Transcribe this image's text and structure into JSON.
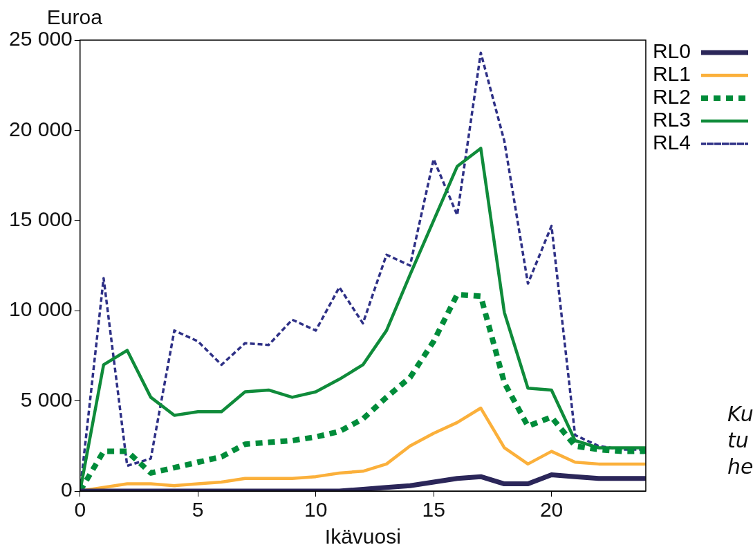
{
  "chart_data": {
    "type": "line",
    "xlabel": "Ikävuosi",
    "ylabel": "Euroa",
    "x": [
      0,
      1,
      2,
      3,
      4,
      5,
      6,
      7,
      8,
      9,
      10,
      11,
      12,
      13,
      14,
      15,
      16,
      17,
      18,
      19,
      20,
      21,
      22,
      23,
      24
    ],
    "xlim": [
      0,
      24
    ],
    "xticks": [
      0,
      5,
      10,
      15,
      20
    ],
    "ylim": [
      0,
      25000
    ],
    "yticks": [
      {
        "value": 0,
        "label": "0"
      },
      {
        "value": 5000,
        "label": "5 000"
      },
      {
        "value": 10000,
        "label": "10 000"
      },
      {
        "value": 15000,
        "label": "15 000"
      },
      {
        "value": 20000,
        "label": "20 000"
      },
      {
        "value": 25000,
        "label": "25 000"
      }
    ],
    "grid": false,
    "legend": "top right",
    "marker": "none",
    "series": [
      {
        "name": "RL0",
        "color": "#2b2659",
        "line_style": "solid",
        "values": [
          0,
          0,
          0,
          0,
          0,
          0,
          0,
          0,
          0,
          0,
          0,
          0,
          100,
          200,
          300,
          500,
          700,
          800,
          400,
          400,
          900,
          800,
          700,
          700,
          700
        ]
      },
      {
        "name": "RL1",
        "color": "#fbb03b",
        "line_style": "solid",
        "values": [
          0,
          200,
          400,
          400,
          300,
          400,
          500,
          700,
          700,
          700,
          800,
          1000,
          1100,
          1500,
          2500,
          3200,
          3800,
          4600,
          2400,
          1500,
          2200,
          1600,
          1500,
          1500,
          1500
        ]
      },
      {
        "name": "RL2",
        "color": "#008c3a",
        "line_style": "dashed",
        "values": [
          0,
          2200,
          2200,
          1000,
          1300,
          1600,
          1900,
          2600,
          2700,
          2800,
          3000,
          3300,
          4000,
          5200,
          6300,
          8300,
          10900,
          10800,
          6000,
          3600,
          4100,
          2500,
          2300,
          2200,
          2200
        ]
      },
      {
        "name": "RL3",
        "color": "#0f8b3a",
        "line_style": "solid",
        "values": [
          0,
          7000,
          7800,
          5200,
          4200,
          4400,
          4400,
          5500,
          5600,
          5200,
          5500,
          6200,
          7000,
          8900,
          12000,
          15000,
          18000,
          19000,
          9900,
          5700,
          5600,
          2800,
          2400,
          2400,
          2400
        ]
      },
      {
        "name": "RL4",
        "color": "#2e3086",
        "line_style": "dashed",
        "values": [
          0,
          11800,
          1400,
          1800,
          8900,
          8300,
          7000,
          8200,
          8100,
          9500,
          8900,
          11300,
          9300,
          13100,
          12500,
          18400,
          15300,
          24300,
          19400,
          11500,
          14700,
          3100,
          2500,
          2300,
          2300
        ]
      }
    ],
    "annotations": [
      "Ku",
      "tu",
      "he"
    ]
  }
}
